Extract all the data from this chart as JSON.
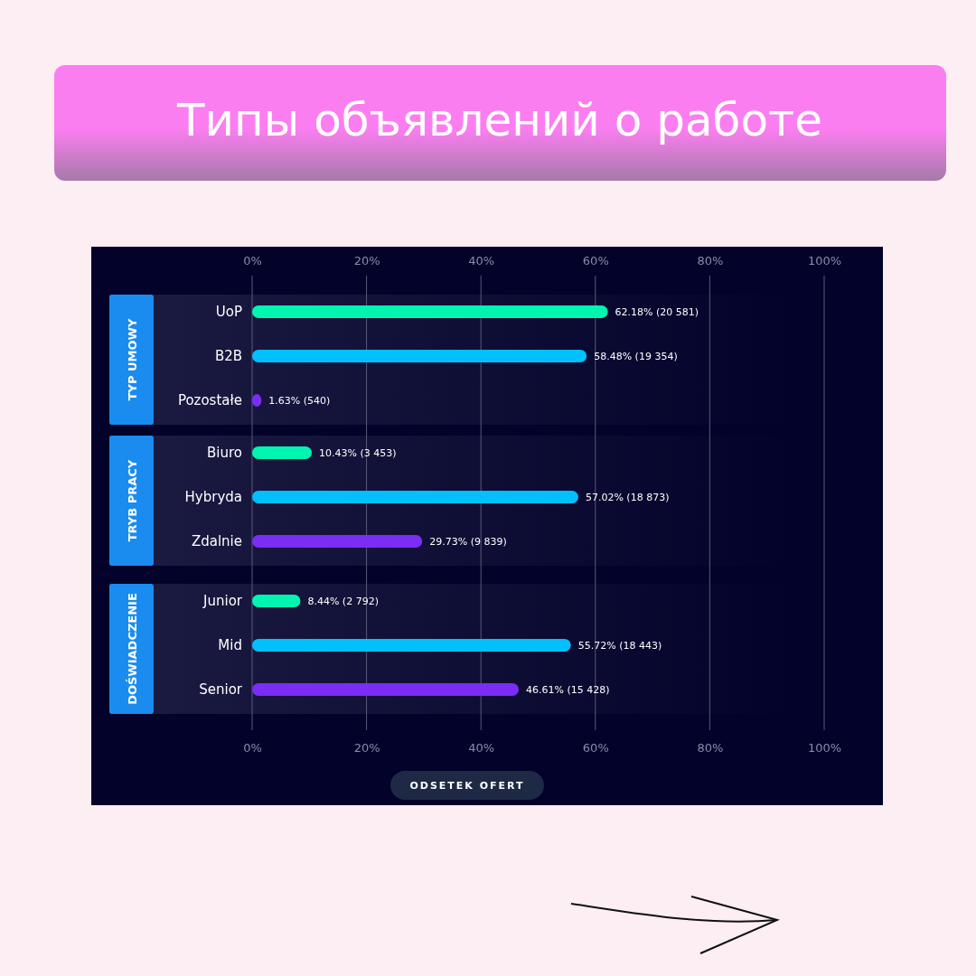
{
  "chart_data": {
    "type": "bar",
    "orientation": "horizontal",
    "title": "Типы объявлений о работе",
    "xlabel": "ODSETEK OFERT",
    "categories": [
      "UoP",
      "B2B",
      "Pozostałe",
      "Biuro",
      "Hybryda",
      "Zdalnie",
      "Junior",
      "Mid",
      "Senior"
    ],
    "values": [
      62.18,
      58.48,
      1.63,
      10.43,
      57.02,
      29.73,
      8.44,
      55.72,
      46.61
    ],
    "colors": [
      "#00f5b0",
      "#00c0ff",
      "#7b2cf5",
      "#00f5b0",
      "#00c0ff",
      "#7b2cf5",
      "#00f5b0",
      "#00c0ff",
      "#7b2cf5"
    ],
    "value_labels": [
      "62.18% (20 581)",
      "58.48% (19 354)",
      "1.63% (540)",
      "10.43% (3 453)",
      "57.02% (18 873)",
      "29.73% (9 839)",
      "8.44% (2 792)",
      "55.72% (18 443)",
      "46.61% (15 428)"
    ],
    "xlim": [
      0,
      100
    ],
    "xticks": [
      {
        "value": 0,
        "label": "0%"
      },
      {
        "value": 20,
        "label": "20%"
      },
      {
        "value": 40,
        "label": "40%"
      },
      {
        "value": 60,
        "label": "60%"
      },
      {
        "value": 80,
        "label": "80%"
      },
      {
        "value": 100,
        "label": "100%"
      }
    ],
    "x2lim": [
      0,
      100
    ],
    "x2ticks": [
      {
        "value": 0,
        "label": "0%"
      },
      {
        "value": 20,
        "label": "20%"
      },
      {
        "value": 40,
        "label": "40%"
      },
      {
        "value": 60,
        "label": "60%"
      },
      {
        "value": 80,
        "label": "80%"
      },
      {
        "value": 100,
        "label": "100%"
      }
    ],
    "grid": "x",
    "annotations": [
      "TYP UMOWY",
      "TRYB PRACY",
      "DOŚWIADCZENIE"
    ]
  }
}
